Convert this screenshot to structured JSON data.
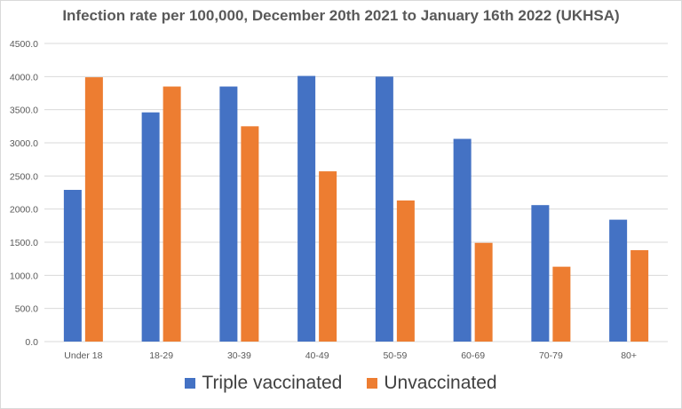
{
  "colors": {
    "series_1": "#4472c4",
    "series_2": "#ed7d31",
    "gridline": "#d9d9d9",
    "text": "#595959"
  },
  "chart_data": {
    "type": "bar",
    "title": "Infection rate per 100,000, December 20th 2021 to January 16th 2022 (UKHSA)",
    "xlabel": "",
    "ylabel": "",
    "ylim": [
      0,
      4500
    ],
    "y_ticks": [
      0,
      500,
      1000,
      1500,
      2000,
      2500,
      3000,
      3500,
      4000,
      4500
    ],
    "y_tick_labels": [
      "0.0",
      "500.0",
      "1000.0",
      "1500.0",
      "2000.0",
      "2500.0",
      "3000.0",
      "3500.0",
      "4000.0",
      "4500.0"
    ],
    "categories": [
      "Under 18",
      "18-29",
      "30-39",
      "40-49",
      "50-59",
      "60-69",
      "70-79",
      "80+"
    ],
    "series": [
      {
        "name": "Triple vaccinated",
        "values": [
          2290,
          3460,
          3850,
          4010,
          4000,
          3060,
          2060,
          1840
        ]
      },
      {
        "name": "Unvaccinated",
        "values": [
          3990,
          3850,
          3250,
          2570,
          2130,
          1490,
          1130,
          1380
        ]
      }
    ],
    "grid": true,
    "legend_position": "bottom"
  }
}
